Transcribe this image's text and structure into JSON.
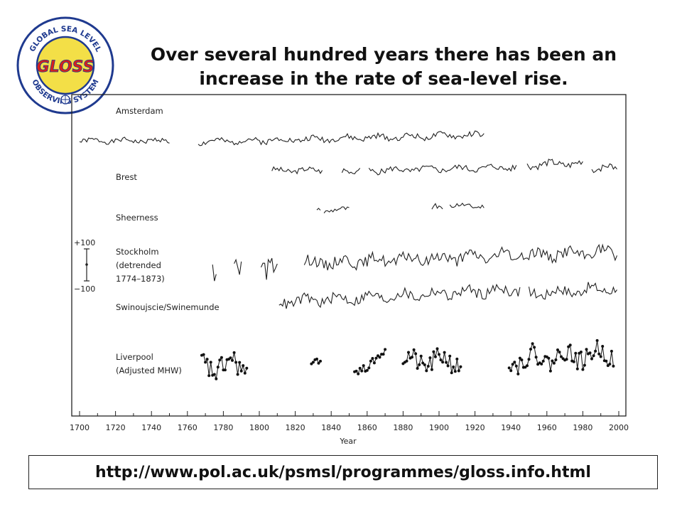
{
  "title": {
    "line1": "Over several hundred years there has been an",
    "line2": "increase in the rate of  sea-level rise."
  },
  "logo": {
    "ring_top": "GLOBAL SEA LEVEL",
    "ring_bottom": "OBSERVING   SYSTEM",
    "wordmark": "GLOSS",
    "icon": "globe-seal-icon",
    "ring_color": "#1f3a8f",
    "wordmark_color": "#d8201c",
    "fill_color": "#f3df47"
  },
  "footer": {
    "url": "http://www.pol.ac.uk/psmsl/programmes/gloss.info.html"
  },
  "chart_data": {
    "type": "line",
    "xlabel": "Year",
    "ylabel": "",
    "xlim": [
      1700,
      2000
    ],
    "xticks": [
      1700,
      1720,
      1740,
      1760,
      1780,
      1800,
      1820,
      1840,
      1860,
      1880,
      1900,
      1920,
      1940,
      1960,
      1980,
      2000
    ],
    "scale_bar": {
      "top_label": "+100",
      "bottom_label": "−100"
    },
    "grid": false,
    "series": [
      {
        "name": "Amsterdam",
        "segments": [
          {
            "start": 1700,
            "end": 1750,
            "level": 0,
            "trend": 0,
            "amp": 8,
            "seed": 1,
            "marker": false
          },
          {
            "start": 1766,
            "end": 1925,
            "level": -4,
            "trend": 25,
            "amp": 10,
            "seed": 2,
            "marker": false
          }
        ]
      },
      {
        "name": "Brest",
        "segments": [
          {
            "start": 1807,
            "end": 1835,
            "level": 0,
            "trend": 2,
            "amp": 9,
            "seed": 3,
            "marker": false
          },
          {
            "start": 1846,
            "end": 1856,
            "level": 2,
            "trend": 0,
            "amp": 12,
            "seed": 4,
            "marker": false
          },
          {
            "start": 1861,
            "end": 1943,
            "level": 0,
            "trend": 12,
            "amp": 10,
            "seed": 5,
            "marker": false
          },
          {
            "start": 1949,
            "end": 1980,
            "level": 20,
            "trend": 6,
            "amp": 12,
            "seed": 6,
            "marker": false
          },
          {
            "start": 1985,
            "end": 1999,
            "level": 10,
            "trend": 0,
            "amp": 12,
            "seed": 7,
            "marker": false
          }
        ]
      },
      {
        "name": "Sheerness",
        "segments": [
          {
            "start": 1832,
            "end": 1834,
            "level": 0,
            "trend": 0,
            "amp": 6,
            "seed": 8,
            "marker": false
          },
          {
            "start": 1836,
            "end": 1850,
            "level": 0,
            "trend": 4,
            "amp": 8,
            "seed": 9,
            "marker": false
          },
          {
            "start": 1896,
            "end": 1902,
            "level": 8,
            "trend": 0,
            "amp": 12,
            "seed": 10,
            "marker": false
          },
          {
            "start": 1906,
            "end": 1925,
            "level": 16,
            "trend": 0,
            "amp": 8,
            "seed": 11,
            "marker": false
          }
        ]
      },
      {
        "name": "Stockholm (detrended 1774–1873)",
        "segments": [
          {
            "start": 1774,
            "end": 1776,
            "level": 0,
            "trend": 0,
            "amp": 45,
            "seed": 12,
            "marker": false
          },
          {
            "start": 1786,
            "end": 1790,
            "level": 0,
            "trend": 0,
            "amp": 30,
            "seed": 13,
            "marker": false
          },
          {
            "start": 1801,
            "end": 1810,
            "level": 0,
            "trend": 0,
            "amp": 40,
            "seed": 14,
            "marker": false
          },
          {
            "start": 1825,
            "end": 1999,
            "level": 0,
            "trend": 40,
            "amp": 20,
            "seed": 15,
            "marker": false
          }
        ]
      },
      {
        "name": "Swinoujscie/Swinemunde",
        "segments": [
          {
            "start": 1811,
            "end": 1945,
            "level": 0,
            "trend": 45,
            "amp": 18,
            "seed": 16,
            "marker": false
          },
          {
            "start": 1950,
            "end": 1999,
            "level": 30,
            "trend": 20,
            "amp": 18,
            "seed": 17,
            "marker": false
          }
        ]
      },
      {
        "name": "Liverpool (Adjusted MHW)",
        "segments": [
          {
            "start": 1768,
            "end": 1793,
            "level": 0,
            "trend": 0,
            "amp": 35,
            "seed": 18,
            "marker": true
          },
          {
            "start": 1829,
            "end": 1834,
            "level": 10,
            "trend": 0,
            "amp": 15,
            "seed": 19,
            "marker": true
          },
          {
            "start": 1853,
            "end": 1870,
            "level": -20,
            "trend": 60,
            "amp": 12,
            "seed": 20,
            "marker": true
          },
          {
            "start": 1880,
            "end": 1912,
            "level": 15,
            "trend": 0,
            "amp": 30,
            "seed": 21,
            "marker": true
          },
          {
            "start": 1939,
            "end": 1997,
            "level": 20,
            "trend": 20,
            "amp": 30,
            "seed": 22,
            "marker": true
          }
        ]
      }
    ]
  }
}
